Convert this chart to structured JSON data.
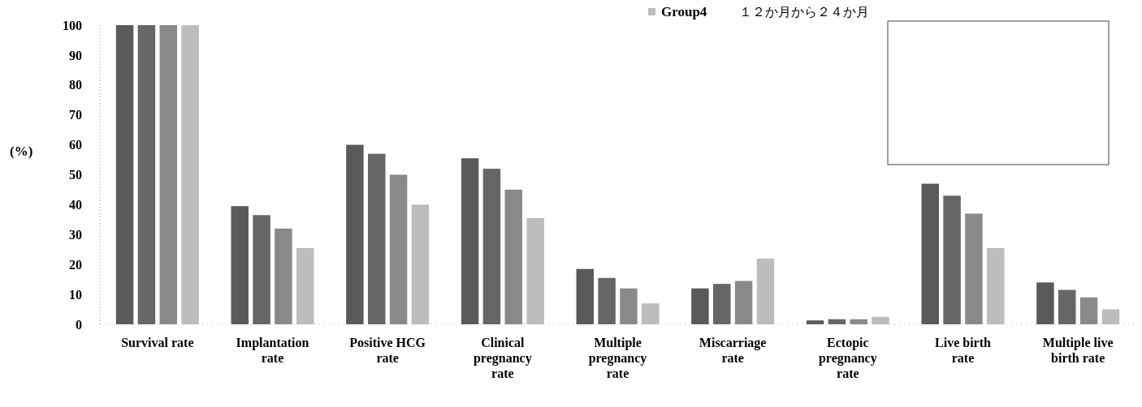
{
  "chart_data": {
    "type": "bar",
    "ylabel": "(%)",
    "categories": [
      "Survival rate",
      "Implantation rate",
      "Positive HCG rate",
      "Clinical pregnancy rate",
      "Multiple pregnancy rate",
      "Miscarriage rate",
      "Ectopic pregnancy rate",
      "Live birth rate",
      "Multiple live birth rate"
    ],
    "series": [
      {
        "color": "#5a5a5a",
        "values": [
          100,
          39.5,
          60,
          55.5,
          18.5,
          12,
          1.3,
          47,
          14
        ]
      },
      {
        "color": "#666666",
        "values": [
          100,
          36.5,
          57,
          52,
          15.5,
          13.5,
          1.7,
          43,
          11.5
        ]
      },
      {
        "color": "#8a8a8a",
        "values": [
          100,
          32,
          50,
          45,
          12,
          14.5,
          1.7,
          37,
          9
        ]
      },
      {
        "name": "Group4",
        "color": "#bdbdbd",
        "values": [
          100,
          25.5,
          40,
          35.5,
          7,
          22,
          2.5,
          25.5,
          5
        ]
      }
    ],
    "ylim": [
      0,
      100
    ],
    "yticks": [
      0,
      10,
      20,
      30,
      40,
      50,
      60,
      70,
      80,
      90,
      100
    ],
    "legend": "top",
    "annotations": [
      "１２か月から２４か月"
    ]
  }
}
